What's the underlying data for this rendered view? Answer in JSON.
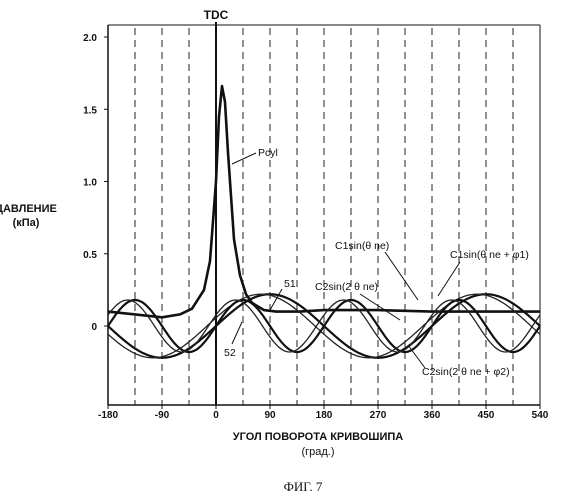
{
  "figure_caption": "ФИГ. 7",
  "chart_data": {
    "type": "line",
    "title": "",
    "xlabel": "УГОЛ ПОВОРОТА КРИВОШИПА",
    "xunit": "(град.)",
    "ylabel": "ДАВЛЕНИЕ",
    "yunit": "(кПа)",
    "xlim": [
      -180,
      540
    ],
    "ylim": [
      -0.2,
      2.0
    ],
    "xticks": [
      -180,
      -90,
      0,
      90,
      180,
      270,
      360,
      450,
      540
    ],
    "xtick_labels": [
      "-180",
      "-90",
      "0",
      "90",
      "180",
      "270",
      "360",
      "450",
      "540"
    ],
    "yticks": [
      0,
      0.5,
      1.0,
      1.5,
      2.0
    ],
    "ytick_labels": [
      "0",
      "0.5",
      "1.0",
      "1.5",
      "2.0"
    ],
    "grid": "vertical dashed lines every 45°",
    "tdc_label": "TDC",
    "series": [
      {
        "name": "Pcyl",
        "x": [
          -180,
          -135,
          -90,
          -60,
          -40,
          -20,
          -10,
          0,
          5,
          10,
          15,
          20,
          30,
          40,
          50,
          60,
          80,
          100,
          140,
          180,
          270,
          360,
          450,
          540
        ],
        "y": [
          0.1,
          0.08,
          0.06,
          0.08,
          0.12,
          0.25,
          0.45,
          1.0,
          1.45,
          1.66,
          1.55,
          1.2,
          0.6,
          0.35,
          0.22,
          0.16,
          0.11,
          0.1,
          0.1,
          0.11,
          0.11,
          0.1,
          0.1,
          0.1
        ]
      },
      {
        "name": "C1sin(θne)",
        "amplitude": 0.22,
        "phase_deg": 0,
        "harmonic": 1
      },
      {
        "name": "C1sin(θne+φ1)",
        "amplitude": 0.22,
        "phase_deg": 15,
        "harmonic": 1
      },
      {
        "name": "C2sin(2θne)",
        "amplitude": 0.18,
        "phase_deg": 0,
        "harmonic": 2
      },
      {
        "name": "C2sin(2θne+φ2)",
        "amplitude": 0.18,
        "phase_deg": 25,
        "harmonic": 2
      }
    ],
    "annotations": [
      {
        "text": "Pcyl"
      },
      {
        "text": "C1sin(θ ne)"
      },
      {
        "text": "C1sin(θ ne + φ1)"
      },
      {
        "text": "C2sin(2 θ ne)"
      },
      {
        "text": "C2sin(2 θ ne + φ2)"
      },
      {
        "text": "51"
      },
      {
        "text": "52"
      }
    ]
  }
}
